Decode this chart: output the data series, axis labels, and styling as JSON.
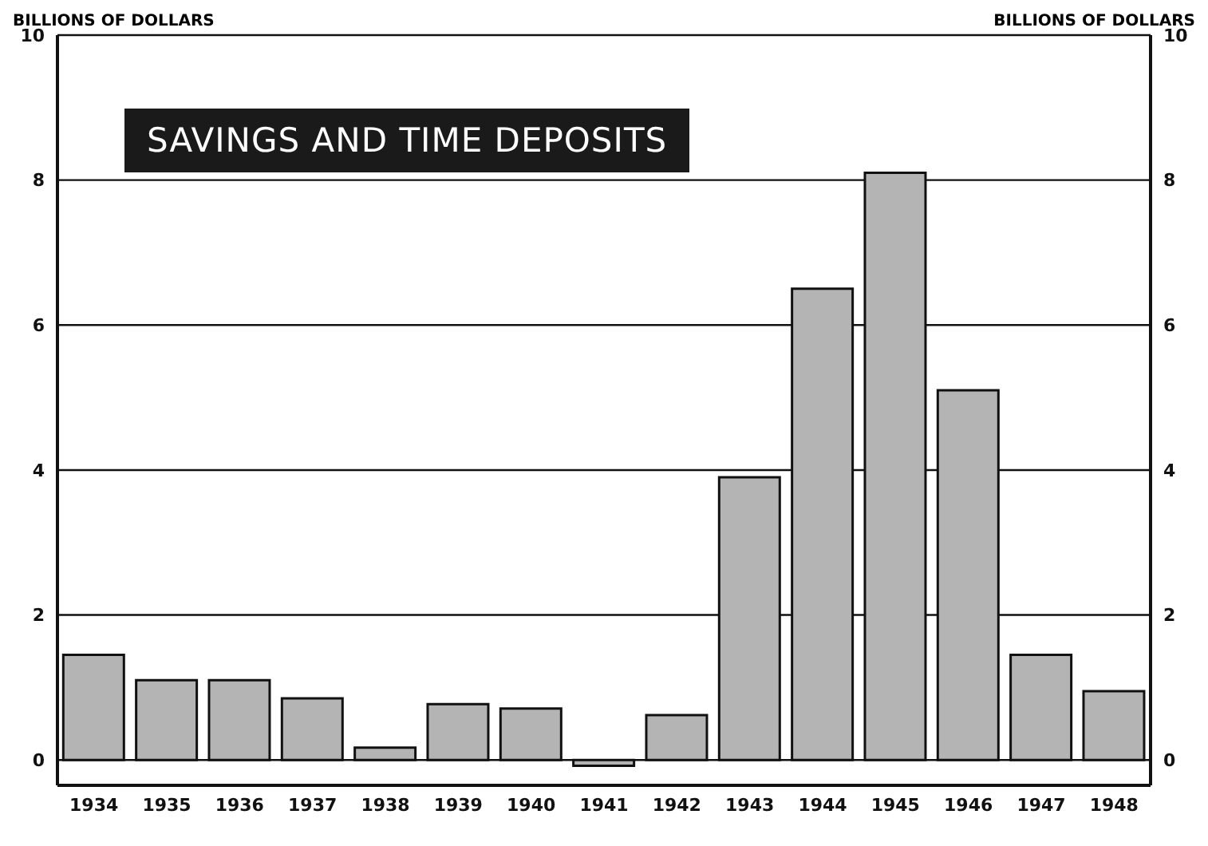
{
  "chart_data": {
    "type": "bar",
    "title": "SAVINGS AND TIME DEPOSITS",
    "ylabel": "BILLIONS OF DOLLARS",
    "y2label": "BILLIONS OF DOLLARS",
    "categories": [
      "1934",
      "1935",
      "1936",
      "1937",
      "1938",
      "1939",
      "1940",
      "1941",
      "1942",
      "1943",
      "1944",
      "1945",
      "1946",
      "1947",
      "1948"
    ],
    "values": [
      1.45,
      1.1,
      1.1,
      0.85,
      0.17,
      0.77,
      0.71,
      -0.08,
      0.62,
      3.9,
      6.5,
      8.1,
      5.1,
      1.45,
      0.95
    ],
    "color": "#b4b4b4",
    "ylim": [
      -0.35,
      10
    ],
    "yticks": [
      0,
      2,
      4,
      6,
      8,
      10
    ],
    "y2lim": [
      -0.35,
      10
    ],
    "y2ticks": [
      0,
      2,
      4,
      6,
      8,
      10
    ],
    "grid": "y"
  }
}
